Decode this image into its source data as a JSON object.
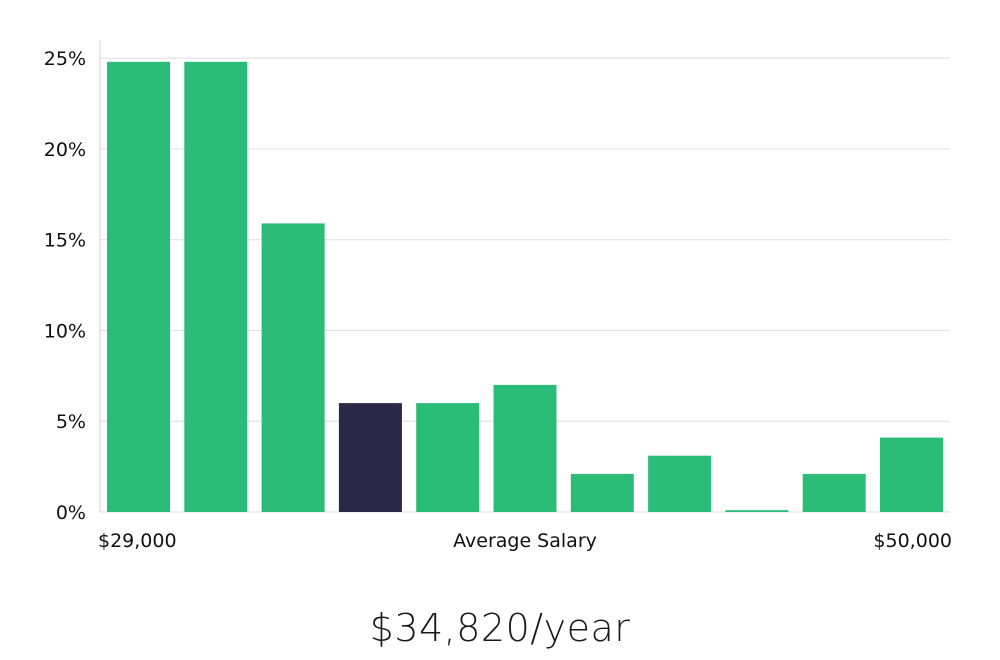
{
  "chart_data": {
    "type": "bar",
    "title": "",
    "xlabel": "Average Salary",
    "ylabel": "",
    "x_min_label": "$29,000",
    "x_max_label": "$50,000",
    "ylim": [
      0,
      26
    ],
    "yticks": [
      0,
      5,
      10,
      15,
      20,
      25
    ],
    "ytick_labels": [
      "0%",
      "5%",
      "10%",
      "15%",
      "20%",
      "25%"
    ],
    "values": [
      24.8,
      24.8,
      15.9,
      6.0,
      6.0,
      7.0,
      2.1,
      3.1,
      0.1,
      2.1,
      4.1
    ],
    "highlight_index": 3,
    "grid": true
  },
  "colors": {
    "bar": "#2bbd77",
    "bar_highlight": "#2a2847",
    "grid": "#e3e3e3",
    "axis": "#d0d0d0"
  },
  "salary": {
    "caption": "$34,820/year"
  }
}
